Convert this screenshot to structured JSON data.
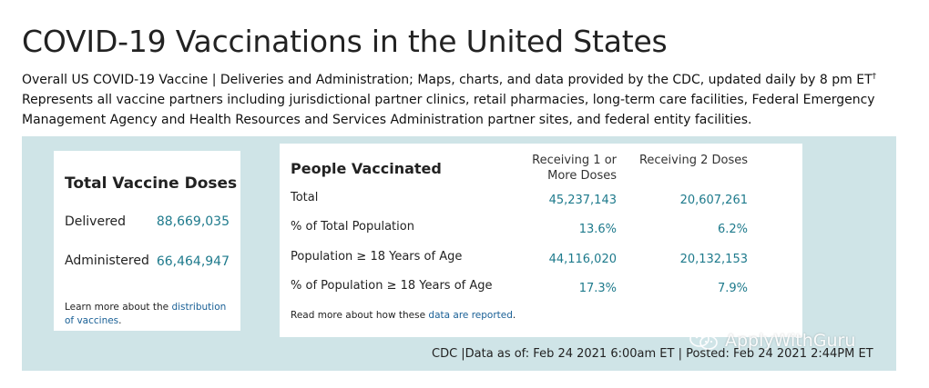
{
  "page": {
    "title": "COVID-19 Vaccinations in the United States",
    "description_line1": "Overall US COVID-19 Vaccine | Deliveries and Administration; Maps, charts, and data provided by the CDC, updated daily by 8 pm ET",
    "dagger": "†",
    "description_line2": "Represents all vaccine partners including jurisdictional partner clinics, retail pharmacies, long-term care facilities, Federal Emergency Management Agency and Health Resources and Services Administration partner sites, and federal entity facilities."
  },
  "total_doses": {
    "heading": "Total Vaccine Doses",
    "delivered_label": "Delivered",
    "delivered_value": "88,669,035",
    "administered_label": "Administered",
    "administered_value": "66,464,947",
    "learn_prefix": "Learn more about the ",
    "learn_link": "distribution of vaccines",
    "learn_suffix": "."
  },
  "people_vaccinated": {
    "heading": "People Vaccinated",
    "col1_line1": "Receiving 1 or",
    "col1_line2": "More Doses",
    "col2": "Receiving 2 Doses",
    "rows": [
      {
        "label": "Total",
        "one_dose": "45,237,143",
        "two_doses": "20,607,261"
      },
      {
        "label": "% of Total Population",
        "one_dose": "13.6%",
        "two_doses": "6.2%"
      },
      {
        "label": "Population ≥ 18 Years of Age",
        "one_dose": "44,116,020",
        "two_doses": "20,132,153"
      },
      {
        "label": "% of Population ≥ 18 Years of Age",
        "one_dose": "17.3%",
        "two_doses": "7.9%"
      }
    ],
    "read_prefix": "Read more about how these ",
    "read_link": "data are reported",
    "read_suffix": "."
  },
  "footer": {
    "text": "CDC |Data as of: Feb 24 2021 6:00am ET | Posted: Feb 24 2021 2:44PM ET"
  },
  "watermark": {
    "text": "ApplyWithGuru",
    "icon": "wechat-icon"
  },
  "colors": {
    "accent": "#1e7a8c",
    "link": "#1a6096",
    "panel_bg": "#cfe4e7"
  }
}
